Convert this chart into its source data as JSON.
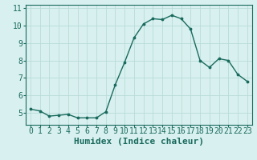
{
  "x": [
    0,
    1,
    2,
    3,
    4,
    5,
    6,
    7,
    8,
    9,
    10,
    11,
    12,
    13,
    14,
    15,
    16,
    17,
    18,
    19,
    20,
    21,
    22,
    23
  ],
  "y": [
    5.2,
    5.1,
    4.8,
    4.85,
    4.9,
    4.7,
    4.7,
    4.7,
    5.05,
    6.6,
    7.9,
    9.3,
    10.1,
    10.4,
    10.35,
    10.6,
    10.4,
    9.8,
    8.0,
    7.6,
    8.1,
    8.0,
    7.2,
    6.8
  ],
  "xlabel": "Humidex (Indice chaleur)",
  "ylim": [
    4.3,
    11.2
  ],
  "xlim": [
    -0.5,
    23.5
  ],
  "yticks": [
    5,
    6,
    7,
    8,
    9,
    10,
    11
  ],
  "xtick_labels": [
    "0",
    "1",
    "2",
    "3",
    "4",
    "5",
    "6",
    "7",
    "8",
    "9",
    "10",
    "11",
    "12",
    "13",
    "14",
    "15",
    "16",
    "17",
    "18",
    "19",
    "20",
    "21",
    "22",
    "23"
  ],
  "line_color": "#1a6b5e",
  "marker_color": "#1a6b5e",
  "bg_color": "#d8f0ef",
  "grid_color": "#b8dcd8",
  "text_color": "#1a6b5e",
  "xlabel_fontsize": 8,
  "tick_fontsize": 7
}
